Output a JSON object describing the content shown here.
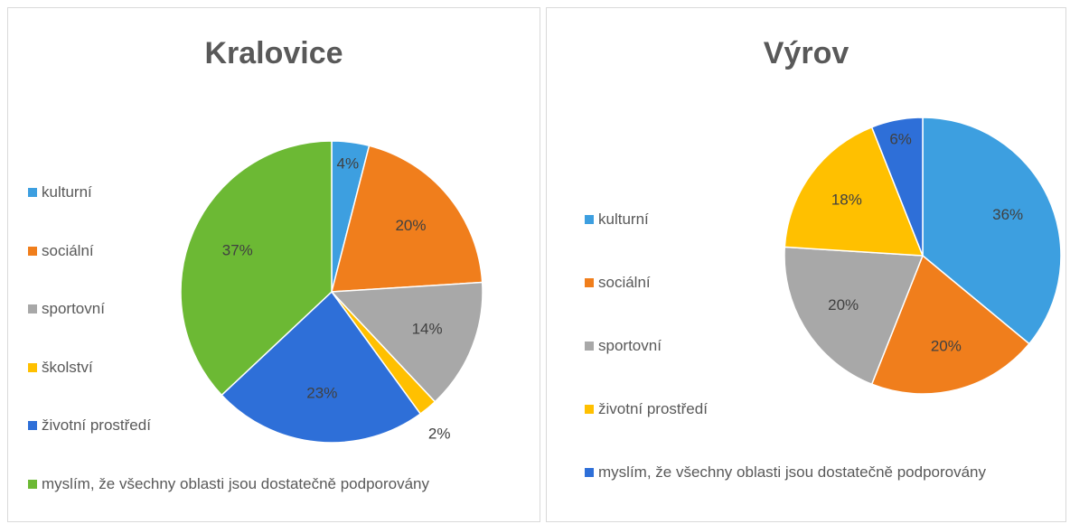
{
  "chart_data": [
    {
      "type": "pie",
      "title": "Kralovice",
      "categories": [
        "kulturní",
        "sociální",
        "sportovní",
        "školství",
        "životní prostředí",
        "myslím, že všechny oblasti jsou dostatečně podporovány"
      ],
      "values": [
        4,
        20,
        14,
        2,
        23,
        37
      ],
      "value_labels": [
        "4%",
        "20%",
        "14%",
        "2%",
        "23%",
        "37%"
      ],
      "colors": [
        "#3d9fe0",
        "#f07e1c",
        "#a8a8a8",
        "#ffc000",
        "#2e6fd8",
        "#6cb934"
      ],
      "legend": "left"
    },
    {
      "type": "pie",
      "title": "Výrov",
      "categories": [
        "kulturní",
        "sociální",
        "sportovní",
        "životní prostředí",
        "myslím, že všechny oblasti jsou dostatečně podporovány"
      ],
      "values": [
        36,
        20,
        20,
        18,
        6
      ],
      "value_labels": [
        "36%",
        "20%",
        "20%",
        "18%",
        "6%"
      ],
      "colors": [
        "#3d9fe0",
        "#f07e1c",
        "#a8a8a8",
        "#ffc000",
        "#2e6fd8"
      ],
      "legend": "left"
    }
  ]
}
